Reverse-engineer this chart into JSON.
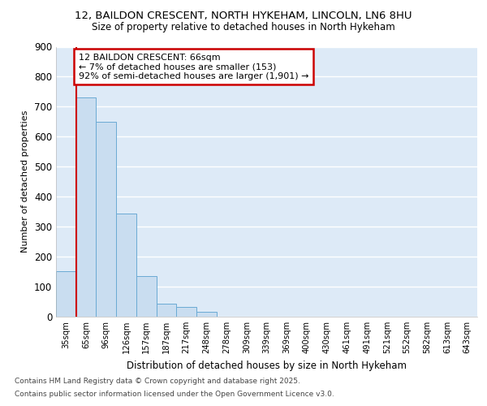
{
  "title1": "12, BAILDON CRESCENT, NORTH HYKEHAM, LINCOLN, LN6 8HU",
  "title2": "Size of property relative to detached houses in North Hykeham",
  "xlabel": "Distribution of detached houses by size in North Hykeham",
  "ylabel": "Number of detached properties",
  "categories": [
    "35sqm",
    "65sqm",
    "96sqm",
    "126sqm",
    "157sqm",
    "187sqm",
    "217sqm",
    "248sqm",
    "278sqm",
    "309sqm",
    "339sqm",
    "369sqm",
    "400sqm",
    "430sqm",
    "461sqm",
    "491sqm",
    "521sqm",
    "552sqm",
    "582sqm",
    "613sqm",
    "643sqm"
  ],
  "values": [
    152,
    730,
    650,
    345,
    135,
    42,
    32,
    15,
    0,
    0,
    0,
    0,
    0,
    0,
    0,
    0,
    0,
    0,
    0,
    0,
    0
  ],
  "bar_color": "#c9ddf0",
  "bar_edge_color": "#6aaad4",
  "background_color": "#ddeaf7",
  "grid_color": "#ffffff",
  "annotation_text": "12 BAILDON CRESCENT: 66sqm\n← 7% of detached houses are smaller (153)\n92% of semi-detached houses are larger (1,901) →",
  "annotation_box_color": "#cc0000",
  "vline_x_index": 1,
  "ylim": [
    0,
    900
  ],
  "yticks": [
    0,
    100,
    200,
    300,
    400,
    500,
    600,
    700,
    800,
    900
  ],
  "fig_bg": "#ffffff",
  "footer1": "Contains HM Land Registry data © Crown copyright and database right 2025.",
  "footer2": "Contains public sector information licensed under the Open Government Licence v3.0."
}
